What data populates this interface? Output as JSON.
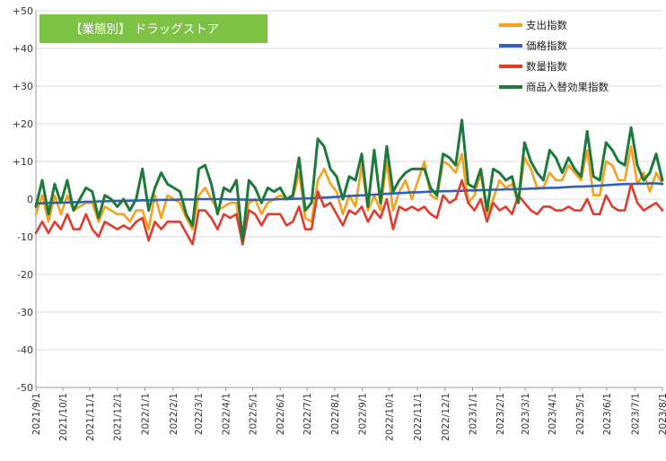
{
  "chart_data": {
    "type": "line",
    "title": "【業態別】 ドラッグストア",
    "xlabel": "",
    "ylabel": "",
    "ylim": [
      -50,
      50
    ],
    "yticks": [
      -50,
      -40,
      -30,
      -20,
      -10,
      0,
      10,
      20,
      30,
      40,
      50
    ],
    "ytick_labels": [
      "-50",
      "-40",
      "-30",
      "-20",
      "-10",
      "0",
      "+10",
      "+20",
      "+30",
      "+40",
      "+50"
    ],
    "x_tick_labels": [
      "2021/9/1",
      "2021/10/1",
      "2021/11/1",
      "2021/12/1",
      "2022/1/1",
      "2022/2/1",
      "2022/3/1",
      "2022/4/1",
      "2022/5/1",
      "2022/6/1",
      "2022/7/1",
      "2022/8/1",
      "2022/9/1",
      "2022/10/1",
      "2022/11/1",
      "2022/12/1",
      "2023/1/1",
      "2023/2/1",
      "2023/3/1",
      "2023/4/1",
      "2023/5/1",
      "2023/6/1",
      "2023/7/1",
      "2023/8/1"
    ],
    "x_tick_weeks": [
      0,
      4.3,
      8.6,
      13.0,
      17.4,
      21.9,
      25.9,
      30.3,
      34.6,
      39.0,
      43.3,
      47.7,
      52.1,
      56.4,
      60.9,
      65.3,
      69.7,
      74.1,
      78.1,
      82.4,
      86.8,
      91.1,
      95.6,
      100.0
    ],
    "grid": true,
    "legend_position": "top-right",
    "series": [
      {
        "name": "支出指数",
        "color": "#F5A01E",
        "values": [
          -4,
          1,
          -6,
          1,
          -4,
          1,
          -3,
          -2,
          -1,
          -1,
          -6,
          -2,
          -3,
          -4,
          -4,
          -6,
          -3,
          -3,
          -8,
          1,
          -5,
          1,
          0,
          -1,
          -5,
          -8,
          1,
          3,
          0,
          -3,
          -2,
          -1,
          -1,
          -12,
          -1,
          0,
          -4,
          -1,
          0,
          1,
          0,
          0,
          7,
          -5,
          -6,
          5,
          8,
          4,
          2,
          -4,
          1,
          -2,
          9,
          -3,
          1,
          -3,
          10,
          -3,
          2,
          5,
          0,
          5,
          10,
          1,
          0,
          10,
          9,
          7,
          12,
          -1,
          1,
          7,
          -4,
          0,
          5,
          3,
          4,
          -1,
          11,
          8,
          3,
          3,
          7,
          5,
          5,
          9,
          7,
          5,
          13,
          1,
          1,
          10,
          9,
          5,
          5,
          14,
          4,
          7,
          2,
          7,
          4
        ]
      },
      {
        "name": "価格指数",
        "color": "#2F5FBF",
        "values": [
          -1.2,
          -1.1,
          -1.0,
          -1.0,
          -0.9,
          -0.9,
          -0.8,
          -0.8,
          -0.7,
          -0.7,
          -0.6,
          -0.6,
          -0.5,
          -0.5,
          -0.5,
          -0.4,
          -0.4,
          -0.3,
          -0.3,
          -0.3,
          -0.2,
          -0.2,
          -0.2,
          -0.1,
          -0.1,
          -0.1,
          0.0,
          0.0,
          0.0,
          0.0,
          0.0,
          -0.1,
          -0.1,
          -0.1,
          -0.2,
          -0.2,
          -0.2,
          -0.1,
          -0.1,
          0.0,
          0.0,
          0.1,
          0.1,
          0.2,
          0.2,
          0.3,
          0.4,
          0.5,
          0.6,
          0.7,
          0.8,
          0.9,
          1.0,
          1.1,
          1.2,
          1.3,
          1.4,
          1.5,
          1.6,
          1.7,
          1.8,
          1.8,
          1.9,
          2.0,
          2.0,
          2.1,
          2.1,
          2.2,
          2.2,
          2.3,
          2.3,
          2.4,
          2.4,
          2.5,
          2.5,
          2.6,
          2.6,
          2.7,
          2.7,
          2.8,
          2.8,
          2.9,
          3.0,
          3.0,
          3.1,
          3.2,
          3.3,
          3.3,
          3.4,
          3.5,
          3.6,
          3.7,
          3.8,
          3.9,
          4.0,
          4.0,
          4.1,
          4.1,
          4.2,
          4.2,
          4.0
        ]
      },
      {
        "name": "数量指数",
        "color": "#E03C2D",
        "values": [
          -9,
          -6,
          -9,
          -6,
          -8,
          -4,
          -8,
          -8,
          -4,
          -8,
          -10,
          -6,
          -7,
          -8,
          -7,
          -8,
          -6,
          -5,
          -11,
          -6,
          -8,
          -6,
          -6,
          -6,
          -9,
          -12,
          -3,
          -3,
          -5,
          -8,
          -4,
          -5,
          -4,
          -12,
          -3,
          -4,
          -7,
          -4,
          -4,
          -4,
          -7,
          -6,
          -2,
          -8,
          -8,
          2,
          -2,
          -1,
          -4,
          -7,
          -3,
          -4,
          -2,
          -6,
          -3,
          -5,
          0,
          -8,
          -2,
          -3,
          -2,
          -3,
          -2,
          -4,
          -5,
          1,
          -1,
          0,
          5,
          -1,
          -3,
          0,
          -6,
          -1,
          -3,
          -2,
          -4,
          1,
          -1,
          -3,
          -4,
          -2,
          -2,
          -3,
          -3,
          -2,
          -3,
          -3,
          0,
          -4,
          -4,
          1,
          -2,
          -3,
          -3,
          4,
          -1,
          -3,
          -2,
          -1,
          -3
        ]
      },
      {
        "name": "商品入替効果指数",
        "color": "#1E7A3C",
        "values": [
          -2,
          5,
          -4,
          4,
          -1,
          5,
          -3,
          0,
          3,
          2,
          -5,
          1,
          0,
          -2,
          0,
          -3,
          0,
          8,
          -3,
          3,
          7,
          4,
          3,
          2,
          -4,
          -7,
          8,
          9,
          4,
          -4,
          3,
          2,
          5,
          -11,
          5,
          3,
          -1,
          3,
          2,
          3,
          0,
          1,
          11,
          -3,
          -1,
          16,
          14,
          8,
          6,
          0,
          6,
          5,
          12,
          -2,
          13,
          -1,
          14,
          2,
          5,
          7,
          8,
          8,
          8,
          3,
          1,
          12,
          11,
          9,
          21,
          4,
          3,
          8,
          -3,
          8,
          7,
          5,
          6,
          -1,
          15,
          10,
          7,
          5,
          13,
          11,
          7,
          11,
          8,
          6,
          18,
          6,
          5,
          15,
          13,
          10,
          9,
          19,
          9,
          5,
          7,
          12,
          5
        ]
      }
    ]
  }
}
